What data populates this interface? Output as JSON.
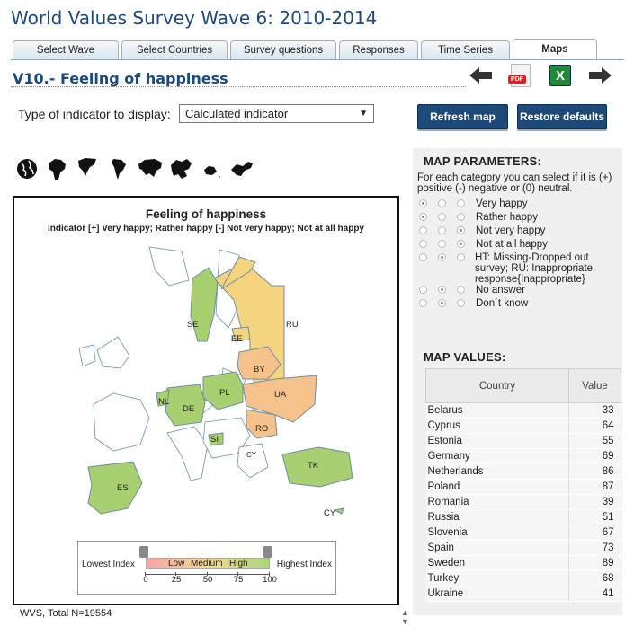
{
  "title": "World Values Survey Wave 6: 2010-2014",
  "tabs": [
    "Select Wave",
    "Select Countries",
    "Survey questions",
    "Responses",
    "Time Series",
    "Maps"
  ],
  "subtitle": "V10.- Feeling of happiness",
  "nav": {
    "back": "arrow-left-icon",
    "pdf": "PDF",
    "excel": "X",
    "forward": "arrow-right-icon"
  },
  "indicator": {
    "label": "Type of indicator to display:",
    "value": "Calculated indicator"
  },
  "buttons": {
    "refresh": "Refresh map",
    "restore": "Restore defaults"
  },
  "map": {
    "title": "Feeling of happiness",
    "subtitle": "Indicator [+] Very happy; Rather happy [-] Not very happy; Not at all happy",
    "labels": {
      "se": "SE",
      "ru": "RU",
      "ee": "EE",
      "by": "BY",
      "pl": "PL",
      "ua": "UA",
      "nl": "NL",
      "de": "DE",
      "ro": "RO",
      "si": "SI",
      "cy_small": "CY",
      "es": "ES",
      "tk": "TK",
      "cy": "CY"
    },
    "legend": {
      "lowest": "Lowest Index",
      "highest": "Highest Index",
      "low": "Low",
      "medium": "Medium",
      "high": "High",
      "ticks": [
        "0",
        "25",
        "50",
        "75",
        "100"
      ]
    },
    "colors": {
      "high": "#a8cf70",
      "mid": "#f5d480",
      "low": "#f5c28c",
      "none": "#ffffff",
      "sea_outline": "#7a9bb0"
    }
  },
  "footer": "WVS, Total N=19554",
  "params": {
    "heading": "MAP PARAMETERS:",
    "desc": "For each category you can select if it is (+) positive (-) negative or (0) neutral.",
    "rows": [
      {
        "label": "Very happy",
        "sel": 0
      },
      {
        "label": "Rather happy",
        "sel": 0
      },
      {
        "label": "Not very happy",
        "sel": 2
      },
      {
        "label": "Not at all happy",
        "sel": 2
      },
      {
        "label": "HT: Missing-Dropped out survey; RU: Inappropriate response{Inappropriate}",
        "sel": 1
      },
      {
        "label": "No answer",
        "sel": 1
      },
      {
        "label": "Don´t know",
        "sel": 1
      }
    ]
  },
  "values": {
    "heading": "MAP VALUES:",
    "col_country": "Country",
    "col_value": "Value",
    "rows": [
      {
        "country": "Belarus",
        "value": "33"
      },
      {
        "country": "Cyprus",
        "value": "64"
      },
      {
        "country": "Estonia",
        "value": "55"
      },
      {
        "country": "Germany",
        "value": "69"
      },
      {
        "country": "Netherlands",
        "value": "86"
      },
      {
        "country": "Poland",
        "value": "87"
      },
      {
        "country": "Romania",
        "value": "39"
      },
      {
        "country": "Russia",
        "value": "51"
      },
      {
        "country": "Slovenia",
        "value": "67"
      },
      {
        "country": "Spain",
        "value": "73"
      },
      {
        "country": "Sweden",
        "value": "89"
      },
      {
        "country": "Turkey",
        "value": "68"
      },
      {
        "country": "Ukraine",
        "value": "41"
      }
    ]
  }
}
